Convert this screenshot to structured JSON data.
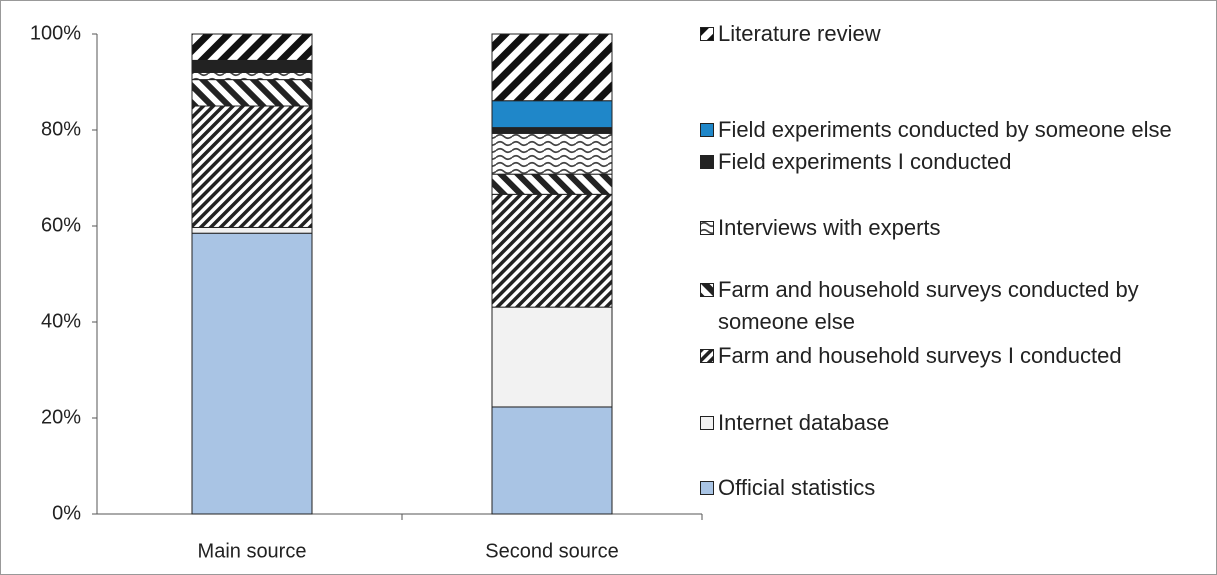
{
  "chart_data": {
    "type": "stacked_bar",
    "categories": [
      "Main source",
      "Second source"
    ],
    "series": [
      {
        "name": "Official statistics",
        "color": "#a9c4e4",
        "pattern": "solid",
        "values": [
          58.5,
          22.3
        ]
      },
      {
        "name": "Internet database",
        "color": "#f2f2f2",
        "pattern": "solid",
        "values": [
          1.2,
          20.8
        ]
      },
      {
        "name": "Farm and household surveys I conducted",
        "color": "#222222",
        "pattern": "dense-slash",
        "values": [
          25.3,
          23.5
        ]
      },
      {
        "name": "Farm and household surveys conducted by someone else",
        "color": "#222222",
        "pattern": "wide-backslash",
        "values": [
          5.5,
          4.2
        ]
      },
      {
        "name": "Interviews with experts",
        "color": "#444444",
        "pattern": "wave",
        "values": [
          1.5,
          8.5
        ]
      },
      {
        "name": "Field experiments I conducted",
        "color": "#222222",
        "pattern": "solid",
        "values": [
          2.5,
          1.2
        ]
      },
      {
        "name": "Field experiments conducted by someone else",
        "color": "#1f87c9",
        "pattern": "solid",
        "values": [
          0,
          5.6
        ]
      },
      {
        "name": "Literature review",
        "color": "#111111",
        "pattern": "wide-slash",
        "values": [
          5.5,
          13.9
        ]
      }
    ],
    "ylim": [
      0,
      100
    ],
    "yticks": [
      {
        "value": 0,
        "label": "0%"
      },
      {
        "value": 20,
        "label": "20%"
      },
      {
        "value": 40,
        "label": "40%"
      },
      {
        "value": 60,
        "label": "60%"
      },
      {
        "value": 80,
        "label": "80%"
      },
      {
        "value": 100,
        "label": "100%"
      }
    ],
    "legend": "right"
  }
}
